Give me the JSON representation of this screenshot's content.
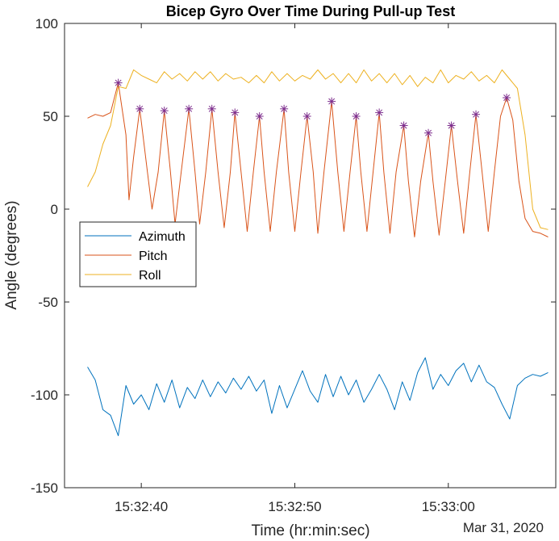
{
  "chart_data": {
    "type": "line",
    "title": "Bicep Gyro Over Time During Pull-up Test",
    "xlabel": "Time (hr:min:sec)",
    "ylabel": "Angle (degrees)",
    "date_label": "Mar 31, 2020",
    "xlim": [
      "15:32:35",
      "15:33:07"
    ],
    "ylim": [
      -150,
      100
    ],
    "x_ticks": [
      "15:32:40",
      "15:32:50",
      "15:33:00"
    ],
    "y_ticks": [
      100,
      50,
      0,
      -50,
      -100,
      -150
    ],
    "grid": false,
    "legend_position": "middle-left",
    "series": [
      {
        "name": "Azimuth",
        "color": "#0072BD",
        "points": [
          [
            "15:32:36.5",
            -85
          ],
          [
            "15:32:37.0",
            -92
          ],
          [
            "15:32:37.5",
            -108
          ],
          [
            "15:32:38.0",
            -111
          ],
          [
            "15:32:38.5",
            -122
          ],
          [
            "15:32:39.0",
            -95
          ],
          [
            "15:32:39.5",
            -105
          ],
          [
            "15:32:40.0",
            -100
          ],
          [
            "15:32:40.5",
            -108
          ],
          [
            "15:32:41.0",
            -94
          ],
          [
            "15:32:41.5",
            -104
          ],
          [
            "15:32:42.0",
            -92
          ],
          [
            "15:32:42.5",
            -107
          ],
          [
            "15:32:43.0",
            -96
          ],
          [
            "15:32:43.5",
            -102
          ],
          [
            "15:32:44.0",
            -92
          ],
          [
            "15:32:44.5",
            -101
          ],
          [
            "15:32:45.0",
            -93
          ],
          [
            "15:32:45.5",
            -99
          ],
          [
            "15:32:46.0",
            -91
          ],
          [
            "15:32:46.5",
            -97
          ],
          [
            "15:32:47.0",
            -90
          ],
          [
            "15:32:47.5",
            -98
          ],
          [
            "15:32:48.0",
            -92
          ],
          [
            "15:32:48.5",
            -110
          ],
          [
            "15:32:49.0",
            -95
          ],
          [
            "15:32:49.5",
            -107
          ],
          [
            "15:32:50.0",
            -97
          ],
          [
            "15:32:50.5",
            -87
          ],
          [
            "15:32:51.0",
            -98
          ],
          [
            "15:32:51.5",
            -104
          ],
          [
            "15:32:52.0",
            -89
          ],
          [
            "15:32:52.5",
            -101
          ],
          [
            "15:32:53.0",
            -90
          ],
          [
            "15:32:53.5",
            -100
          ],
          [
            "15:32:54.0",
            -92
          ],
          [
            "15:32:54.5",
            -104
          ],
          [
            "15:32:55.0",
            -97
          ],
          [
            "15:32:55.5",
            -89
          ],
          [
            "15:32:56.0",
            -97
          ],
          [
            "15:32:56.5",
            -108
          ],
          [
            "15:32:57.0",
            -93
          ],
          [
            "15:32:57.5",
            -103
          ],
          [
            "15:32:58.0",
            -88
          ],
          [
            "15:32:58.5",
            -80
          ],
          [
            "15:32:59.0",
            -97
          ],
          [
            "15:32:59.5",
            -89
          ],
          [
            "15:33:00.0",
            -95
          ],
          [
            "15:33:00.5",
            -87
          ],
          [
            "15:33:01.0",
            -83
          ],
          [
            "15:33:01.5",
            -93
          ],
          [
            "15:33:02.0",
            -84
          ],
          [
            "15:33:02.5",
            -93
          ],
          [
            "15:33:03.0",
            -96
          ],
          [
            "15:33:03.5",
            -105
          ],
          [
            "15:33:04.0",
            -113
          ],
          [
            "15:33:04.5",
            -95
          ],
          [
            "15:33:05.0",
            -91
          ],
          [
            "15:33:05.5",
            -89
          ],
          [
            "15:33:06.0",
            -90
          ],
          [
            "15:33:06.5",
            -88
          ]
        ]
      },
      {
        "name": "Pitch",
        "color": "#D95319",
        "points": [
          [
            "15:32:36.5",
            49
          ],
          [
            "15:32:37.0",
            51
          ],
          [
            "15:32:37.5",
            50
          ],
          [
            "15:32:38.0",
            52
          ],
          [
            "15:32:38.5",
            68
          ],
          [
            "15:32:39.0",
            40
          ],
          [
            "15:32:39.2",
            5
          ],
          [
            "15:32:39.5",
            28
          ],
          [
            "15:32:39.9",
            54
          ],
          [
            "15:32:40.4",
            20
          ],
          [
            "15:32:40.7",
            0
          ],
          [
            "15:32:41.1",
            20
          ],
          [
            "15:32:41.5",
            53
          ],
          [
            "15:32:41.9",
            20
          ],
          [
            "15:32:42.2",
            -8
          ],
          [
            "15:32:42.6",
            20
          ],
          [
            "15:32:43.1",
            54
          ],
          [
            "15:32:43.5",
            20
          ],
          [
            "15:32:43.8",
            -8
          ],
          [
            "15:32:44.2",
            20
          ],
          [
            "15:32:44.6",
            54
          ],
          [
            "15:32:45.0",
            20
          ],
          [
            "15:32:45.4",
            -10
          ],
          [
            "15:32:45.8",
            20
          ],
          [
            "15:32:46.1",
            52
          ],
          [
            "15:32:46.5",
            20
          ],
          [
            "15:32:46.9",
            -12
          ],
          [
            "15:32:47.3",
            20
          ],
          [
            "15:32:47.7",
            50
          ],
          [
            "15:32:48.0",
            20
          ],
          [
            "15:32:48.4",
            -12
          ],
          [
            "15:32:48.8",
            20
          ],
          [
            "15:32:49.3",
            54
          ],
          [
            "15:32:49.6",
            20
          ],
          [
            "15:32:50.0",
            -12
          ],
          [
            "15:32:50.4",
            20
          ],
          [
            "15:32:50.8",
            50
          ],
          [
            "15:32:51.2",
            20
          ],
          [
            "15:32:51.5",
            -13
          ],
          [
            "15:32:51.9",
            20
          ],
          [
            "15:32:52.4",
            58
          ],
          [
            "15:32:52.8",
            20
          ],
          [
            "15:32:53.2",
            -12
          ],
          [
            "15:32:53.6",
            20
          ],
          [
            "15:32:54.0",
            50
          ],
          [
            "15:32:54.3",
            20
          ],
          [
            "15:32:54.7",
            -12
          ],
          [
            "15:32:55.1",
            20
          ],
          [
            "15:32:55.5",
            52
          ],
          [
            "15:32:55.8",
            20
          ],
          [
            "15:32:56.2",
            -13
          ],
          [
            "15:32:56.6",
            20
          ],
          [
            "15:32:57.1",
            45
          ],
          [
            "15:32:57.4",
            15
          ],
          [
            "15:32:57.8",
            -15
          ],
          [
            "15:32:58.2",
            15
          ],
          [
            "15:32:58.7",
            41
          ],
          [
            "15:32:59.0",
            15
          ],
          [
            "15:32:59.4",
            -14
          ],
          [
            "15:32:59.8",
            15
          ],
          [
            "15:33:00.2",
            45
          ],
          [
            "15:33:00.6",
            15
          ],
          [
            "15:33:01.0",
            -13
          ],
          [
            "15:33:01.4",
            20
          ],
          [
            "15:33:01.8",
            51
          ],
          [
            "15:33:02.2",
            20
          ],
          [
            "15:33:02.6",
            -12
          ],
          [
            "15:33:03.0",
            20
          ],
          [
            "15:33:03.4",
            50
          ],
          [
            "15:33:03.8",
            60
          ],
          [
            "15:33:04.2",
            48
          ],
          [
            "15:33:04.6",
            15
          ],
          [
            "15:33:05.0",
            -5
          ],
          [
            "15:33:05.5",
            -12
          ],
          [
            "15:33:06.0",
            -13
          ],
          [
            "15:33:06.5",
            -15
          ]
        ]
      },
      {
        "name": "Roll",
        "color": "#EDB120",
        "points": [
          [
            "15:32:36.5",
            12
          ],
          [
            "15:32:37.0",
            20
          ],
          [
            "15:32:37.5",
            35
          ],
          [
            "15:32:38.0",
            45
          ],
          [
            "15:32:38.5",
            66
          ],
          [
            "15:32:39.0",
            65
          ],
          [
            "15:32:39.5",
            75
          ],
          [
            "15:32:40.0",
            72
          ],
          [
            "15:32:40.5",
            70
          ],
          [
            "15:32:41.0",
            68
          ],
          [
            "15:32:41.5",
            74
          ],
          [
            "15:32:42.0",
            70
          ],
          [
            "15:32:42.5",
            73
          ],
          [
            "15:32:43.0",
            69
          ],
          [
            "15:32:43.5",
            74
          ],
          [
            "15:32:44.0",
            70
          ],
          [
            "15:32:44.5",
            74
          ],
          [
            "15:32:45.0",
            69
          ],
          [
            "15:32:45.5",
            73
          ],
          [
            "15:32:46.0",
            70
          ],
          [
            "15:32:46.5",
            71
          ],
          [
            "15:32:47.0",
            68
          ],
          [
            "15:32:47.5",
            72
          ],
          [
            "15:32:48.0",
            68
          ],
          [
            "15:32:48.5",
            74
          ],
          [
            "15:32:49.0",
            69
          ],
          [
            "15:32:49.5",
            73
          ],
          [
            "15:32:50.0",
            69
          ],
          [
            "15:32:50.5",
            72
          ],
          [
            "15:32:51.0",
            70
          ],
          [
            "15:32:51.5",
            75
          ],
          [
            "15:32:52.0",
            70
          ],
          [
            "15:32:52.5",
            73
          ],
          [
            "15:32:53.0",
            68
          ],
          [
            "15:32:53.5",
            73
          ],
          [
            "15:32:54.0",
            68
          ],
          [
            "15:32:54.5",
            75
          ],
          [
            "15:32:55.0",
            69
          ],
          [
            "15:32:55.5",
            73
          ],
          [
            "15:32:56.0",
            68
          ],
          [
            "15:32:56.5",
            73
          ],
          [
            "15:32:57.0",
            67
          ],
          [
            "15:32:57.5",
            72
          ],
          [
            "15:32:58.0",
            66
          ],
          [
            "15:32:58.5",
            71
          ],
          [
            "15:32:59.0",
            68
          ],
          [
            "15:32:59.5",
            75
          ],
          [
            "15:33:00.0",
            68
          ],
          [
            "15:33:00.5",
            72
          ],
          [
            "15:33:01.0",
            70
          ],
          [
            "15:33:01.5",
            74
          ],
          [
            "15:33:02.0",
            69
          ],
          [
            "15:33:02.5",
            72
          ],
          [
            "15:33:03.0",
            68
          ],
          [
            "15:33:03.5",
            75
          ],
          [
            "15:33:04.0",
            70
          ],
          [
            "15:33:04.5",
            65
          ],
          [
            "15:33:05.0",
            40
          ],
          [
            "15:33:05.5",
            0
          ],
          [
            "15:33:06.0",
            -10
          ],
          [
            "15:33:06.5",
            -11
          ]
        ]
      }
    ],
    "peak_markers": {
      "color": "#7E2F8E",
      "symbol": "*",
      "points": [
        [
          "15:32:38.5",
          68
        ],
        [
          "15:32:39.9",
          54
        ],
        [
          "15:32:41.5",
          53
        ],
        [
          "15:32:43.1",
          54
        ],
        [
          "15:32:44.6",
          54
        ],
        [
          "15:32:46.1",
          52
        ],
        [
          "15:32:47.7",
          50
        ],
        [
          "15:32:49.3",
          54
        ],
        [
          "15:32:50.8",
          50
        ],
        [
          "15:32:52.4",
          58
        ],
        [
          "15:32:54.0",
          50
        ],
        [
          "15:32:55.5",
          52
        ],
        [
          "15:32:57.1",
          45
        ],
        [
          "15:32:58.7",
          41
        ],
        [
          "15:33:00.2",
          45
        ],
        [
          "15:33:01.8",
          51
        ],
        [
          "15:33:03.8",
          60
        ]
      ]
    }
  }
}
